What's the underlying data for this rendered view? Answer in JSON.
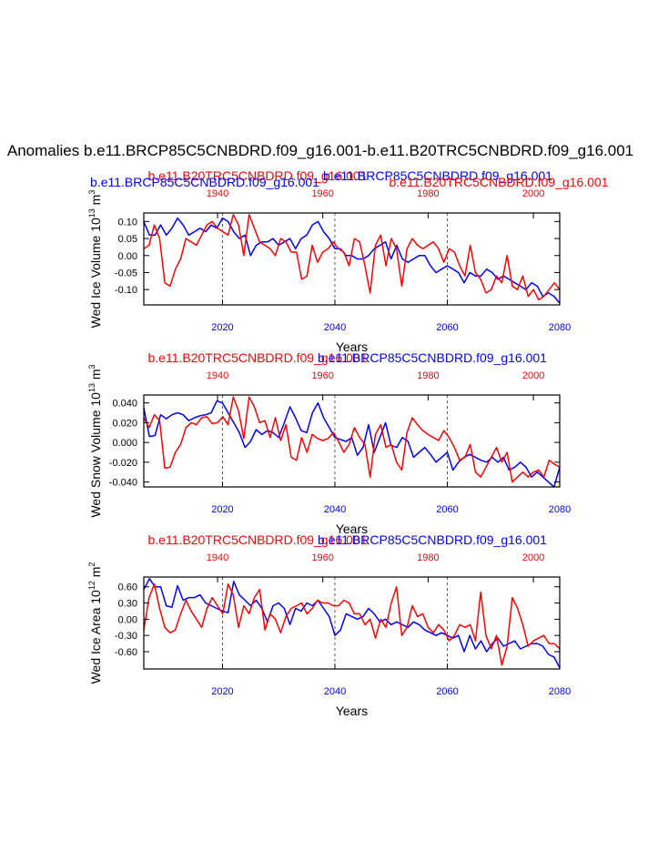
{
  "page_title": "Anomalies b.e11.BRCP85C5CNBDRD.f09_g16.001-b.e11.B20TRC5CNBDRD.f09_g16.001",
  "colors": {
    "rcp": "#0000ff",
    "hist": "#ff0000",
    "axis": "#000000"
  },
  "header_panel1": {
    "hist_case": "b.e11.B20TRC5CNBDRD.f09_g16.001",
    "rcp_case": "b.e11.BRCP85C5CNBDRD.f09_g16.001",
    "rcp_case_left": "b.e11.BRCP85C5CNBDRD.f09_g16.001",
    "hist_case_right": "b.e11.B20TRC5CNBDRD.f09_g16.001"
  },
  "header_panel2": {
    "hist_case": "b.e11.B20TRC5CNBDRD.f09_g16.001",
    "rcp_case": "b.e11.BRCP85C5CNBDRD.f09_g16.001"
  },
  "header_panel3": {
    "hist_case": "b.e11.B20TRC5CNBDRD.f09_g16.001",
    "rcp_case": "b.e11.BRCP85C5CNBDRD.f09_g16.001"
  },
  "chart_data": [
    {
      "type": "line",
      "ylabel": "Wed Ice Volume 10",
      "ylabel_exp": "13",
      "ylabel_unit": " m",
      "ylabel_unit_exp": "3",
      "xlabel": "Years",
      "xlim_rcp": [
        2006,
        2080
      ],
      "xlim_hist": [
        1926,
        2005
      ],
      "ylim": [
        -0.145,
        0.125
      ],
      "yticks": [
        0.1,
        0.05,
        0.0,
        -0.05,
        -0.1
      ],
      "ytick_labels": [
        "0.10",
        "0.05",
        "0.00",
        "-0.05",
        "-0.10"
      ],
      "xticks_rcp": [
        2020,
        2040,
        2060,
        2080
      ],
      "xtick_labels_rcp": [
        "2020",
        "2040",
        "2060",
        "2080"
      ],
      "xticks_hist": [
        1940,
        1960,
        1980,
        2000
      ],
      "xtick_labels_hist": [
        "1940",
        "1960",
        "1980",
        "2000"
      ],
      "dashed_lines_rcp": [
        2020,
        2040,
        2060
      ],
      "series": [
        {
          "name": "b.e11.BRCP85C5CNBDRD.f09_g16.001",
          "axis": "rcp",
          "color": "#0000ff",
          "x_start": 2006,
          "x_step": 1,
          "values": [
            0.1,
            0.06,
            0.06,
            0.09,
            0.06,
            0.08,
            0.11,
            0.09,
            0.06,
            0.07,
            0.08,
            0.07,
            0.09,
            0.08,
            0.11,
            0.1,
            0.07,
            0.05,
            0.06,
            0.0,
            0.03,
            0.04,
            0.04,
            0.05,
            0.03,
            0.04,
            0.05,
            0.02,
            0.05,
            0.06,
            0.09,
            0.1,
            0.07,
            0.05,
            0.02,
            0.02,
            0.0,
            0.0,
            -0.01,
            -0.01,
            0.0,
            0.02,
            0.03,
            0.04,
            -0.01,
            0.03,
            -0.01,
            -0.02,
            -0.01,
            0.0,
            0.0,
            -0.03,
            -0.05,
            -0.04,
            -0.03,
            -0.04,
            -0.05,
            -0.08,
            -0.05,
            -0.06,
            -0.06,
            -0.04,
            -0.05,
            -0.07,
            -0.06,
            -0.07,
            -0.08,
            -0.09,
            -0.1,
            -0.08,
            -0.09,
            -0.12,
            -0.11,
            -0.12,
            -0.14
          ]
        },
        {
          "name": "b.e11.B20TRC5CNBDRD.f09_g16.001",
          "axis": "hist",
          "color": "#ff0000",
          "x_start": 1926,
          "x_step": 1,
          "values": [
            0.02,
            0.03,
            0.09,
            0.05,
            -0.08,
            -0.09,
            -0.04,
            -0.01,
            0.05,
            0.04,
            0.03,
            0.06,
            0.09,
            0.1,
            0.08,
            0.07,
            0.06,
            0.12,
            0.09,
            0.0,
            0.12,
            0.08,
            0.04,
            0.03,
            0.02,
            0.0,
            0.05,
            0.04,
            0.01,
            0.01,
            -0.07,
            -0.06,
            0.03,
            -0.02,
            0.01,
            0.02,
            0.04,
            0.02,
            0.01,
            -0.03,
            0.05,
            0.04,
            -0.03,
            -0.11,
            0.03,
            0.06,
            -0.03,
            0.05,
            0.02,
            -0.09,
            0.02,
            0.05,
            0.03,
            0.02,
            0.03,
            0.04,
            0.02,
            -0.02,
            0.02,
            0.01,
            -0.03,
            -0.06,
            0.03,
            -0.05,
            -0.07,
            -0.11,
            -0.1,
            -0.06,
            -0.08,
            0.0,
            -0.09,
            -0.1,
            -0.06,
            -0.12,
            -0.1,
            -0.13,
            -0.12,
            -0.1,
            -0.08,
            -0.1
          ]
        }
      ]
    },
    {
      "type": "line",
      "ylabel": "Wed Snow Volume 10",
      "ylabel_exp": "13",
      "ylabel_unit": " m",
      "ylabel_unit_exp": "3",
      "xlabel": "Years",
      "xlim_rcp": [
        2006,
        2080
      ],
      "xlim_hist": [
        1926,
        2005
      ],
      "ylim": [
        -0.045,
        0.048
      ],
      "yticks": [
        0.04,
        0.02,
        0.0,
        -0.02,
        -0.04
      ],
      "ytick_labels": [
        "0.040",
        "0.020",
        "0.000",
        "-0.020",
        "-0.040"
      ],
      "xticks_rcp": [
        2020,
        2040,
        2060,
        2080
      ],
      "xtick_labels_rcp": [
        "2020",
        "2040",
        "2060",
        "2080"
      ],
      "xticks_hist": [
        1940,
        1960,
        1980,
        2000
      ],
      "xtick_labels_hist": [
        "1940",
        "1960",
        "1980",
        "2000"
      ],
      "dashed_lines_rcp": [
        2020,
        2040,
        2060
      ],
      "series": [
        {
          "name": "b.e11.BRCP85C5CNBDRD.f09_g16.001",
          "axis": "rcp",
          "color": "#0000ff",
          "x_start": 2006,
          "x_step": 1,
          "values": [
            0.035,
            0.006,
            0.007,
            0.028,
            0.024,
            0.028,
            0.03,
            0.028,
            0.022,
            0.025,
            0.027,
            0.028,
            0.03,
            0.042,
            0.04,
            0.03,
            0.02,
            0.01,
            -0.005,
            0.001,
            0.013,
            0.008,
            0.012,
            0.01,
            0.005,
            0.02,
            0.036,
            0.025,
            0.012,
            0.01,
            0.03,
            0.04,
            0.025,
            0.015,
            0.005,
            0.003,
            0.001,
            0.005,
            -0.013,
            -0.005,
            0.018,
            -0.01,
            0.005,
            0.02,
            -0.003,
            -0.005,
            0.005,
            0.001,
            -0.015,
            -0.01,
            -0.005,
            -0.012,
            -0.02,
            -0.015,
            -0.01,
            -0.028,
            -0.02,
            -0.015,
            -0.012,
            -0.015,
            -0.018,
            -0.02,
            -0.015,
            -0.02,
            -0.015,
            -0.028,
            -0.025,
            -0.02,
            -0.025,
            -0.035,
            -0.03,
            -0.035,
            -0.04,
            -0.045,
            -0.025
          ]
        },
        {
          "name": "b.e11.B20TRC5CNBDRD.f09_g16.001",
          "axis": "hist",
          "color": "#ff0000",
          "x_start": 1926,
          "x_step": 1,
          "values": [
            0.025,
            0.015,
            0.028,
            0.022,
            -0.026,
            -0.025,
            -0.01,
            -0.002,
            0.015,
            0.02,
            0.018,
            0.025,
            0.026,
            0.019,
            0.02,
            0.026,
            0.018,
            0.046,
            0.032,
            0.004,
            0.046,
            0.036,
            0.02,
            0.022,
            0.005,
            0.025,
            0.002,
            0.018,
            -0.015,
            -0.018,
            0.005,
            -0.01,
            0.008,
            0.004,
            0.002,
            0.004,
            0.01,
            0.001,
            -0.01,
            -0.002,
            0.015,
            0.005,
            -0.002,
            -0.035,
            0.008,
            0.018,
            -0.005,
            -0.002,
            -0.02,
            -0.028,
            0.01,
            0.025,
            0.018,
            0.012,
            0.008,
            0.005,
            0.002,
            0.012,
            0.005,
            -0.005,
            -0.018,
            -0.015,
            -0.002,
            -0.03,
            -0.035,
            -0.025,
            -0.015,
            -0.005,
            -0.02,
            -0.01,
            -0.04,
            -0.035,
            -0.03,
            -0.035,
            -0.03,
            -0.028,
            -0.035,
            -0.018,
            -0.022,
            -0.025
          ]
        }
      ]
    },
    {
      "type": "line",
      "ylabel": "Wed Ice Area 10",
      "ylabel_exp": "12",
      "ylabel_unit": " m",
      "ylabel_unit_exp": "2",
      "xlabel": "Years",
      "xlim_rcp": [
        2006,
        2080
      ],
      "xlim_hist": [
        1926,
        2005
      ],
      "ylim": [
        -0.92,
        0.78
      ],
      "yticks": [
        0.6,
        0.3,
        0.0,
        -0.3,
        -0.6
      ],
      "ytick_labels": [
        "0.60",
        "0.30",
        "0.00",
        "-0.30",
        "-0.60"
      ],
      "xticks_rcp": [
        2020,
        2040,
        2060,
        2080
      ],
      "xtick_labels_rcp": [
        "2020",
        "2040",
        "2060",
        "2080"
      ],
      "xticks_hist": [
        1940,
        1960,
        1980,
        2000
      ],
      "xtick_labels_hist": [
        "1940",
        "1960",
        "1980",
        "2000"
      ],
      "dashed_lines_rcp": [
        2020,
        2040,
        2060
      ],
      "series": [
        {
          "name": "b.e11.BRCP85C5CNBDRD.f09_g16.001",
          "axis": "rcp",
          "color": "#0000ff",
          "x_start": 2006,
          "x_step": 1,
          "values": [
            0.55,
            0.75,
            0.6,
            0.6,
            0.25,
            0.22,
            0.62,
            0.35,
            0.4,
            0.4,
            0.45,
            0.3,
            0.25,
            0.2,
            0.15,
            0.12,
            0.7,
            0.45,
            0.35,
            0.25,
            0.35,
            0.2,
            -0.05,
            0.25,
            0.3,
            0.2,
            -0.1,
            0.2,
            0.15,
            0.3,
            0.25,
            0.35,
            0.2,
            0.05,
            -0.3,
            -0.2,
            0.1,
            0.05,
            0.0,
            0.05,
            0.2,
            0.1,
            -0.05,
            0.0,
            -0.1,
            -0.05,
            -0.1,
            -0.15,
            -0.05,
            -0.1,
            -0.2,
            -0.25,
            -0.3,
            -0.25,
            -0.3,
            -0.35,
            -0.3,
            -0.6,
            -0.3,
            -0.55,
            -0.4,
            -0.6,
            -0.45,
            -0.35,
            -0.5,
            -0.45,
            -0.4,
            -0.55,
            -0.5,
            -0.45,
            -0.45,
            -0.5,
            -0.65,
            -0.7,
            -0.9
          ]
        },
        {
          "name": "b.e11.B20TRC5CNBDRD.f09_g16.001",
          "axis": "hist",
          "color": "#ff0000",
          "x_start": 1926,
          "x_step": 1,
          "values": [
            -0.2,
            0.4,
            0.65,
            0.2,
            -0.15,
            -0.25,
            -0.2,
            0.1,
            0.35,
            0.15,
            0.0,
            -0.15,
            0.2,
            0.4,
            0.25,
            0.1,
            0.65,
            0.45,
            -0.15,
            0.25,
            0.1,
            0.4,
            0.55,
            -0.2,
            0.1,
            0.0,
            -0.25,
            0.05,
            0.2,
            0.25,
            0.3,
            0.1,
            0.2,
            0.35,
            0.3,
            0.3,
            0.25,
            0.25,
            0.35,
            0.3,
            0.1,
            0.1,
            -0.1,
            0.0,
            -0.35,
            0.0,
            -0.15,
            0.3,
            0.6,
            -0.3,
            -0.15,
            0.25,
            0.05,
            0.1,
            -0.15,
            -0.25,
            -0.1,
            -0.2,
            -0.4,
            -0.3,
            -0.1,
            -0.15,
            -0.1,
            -0.4,
            0.5,
            -0.3,
            -0.55,
            -0.3,
            -0.85,
            -0.5,
            0.4,
            0.2,
            -0.1,
            -0.5,
            -0.4,
            -0.35,
            -0.3,
            -0.45,
            -0.45,
            -0.55
          ]
        }
      ]
    }
  ]
}
